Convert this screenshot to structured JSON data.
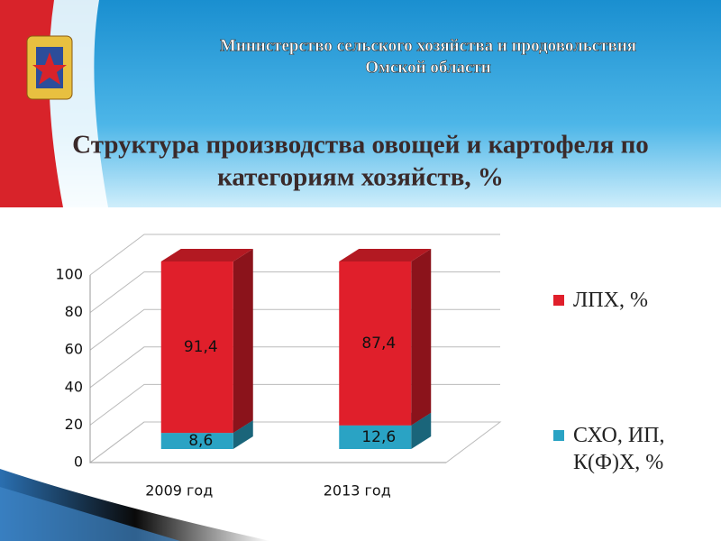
{
  "header": {
    "lines": [
      "Министерство сельского хозяйства и продовольствия",
      "Омской области"
    ]
  },
  "chart_data": {
    "type": "bar3d_stacked",
    "title_lines": [
      "Структура производства овощей и картофеля по",
      "категориям хозяйств, %"
    ],
    "categories": [
      "2009 год",
      "2013 год"
    ],
    "series": [
      {
        "name": "СХО, ИП, К(Ф)Х, %",
        "color": "#2aa3c4",
        "values": [
          8.6,
          12.6
        ],
        "value_labels": [
          "8,6",
          "12,6"
        ]
      },
      {
        "name": "ЛПХ, %",
        "color": "#e01f2b",
        "values": [
          91.4,
          87.4
        ],
        "value_labels": [
          "91,4",
          "87,4"
        ]
      }
    ],
    "ylim": [
      0,
      100
    ],
    "yticks": [
      0,
      20,
      40,
      60,
      80,
      100
    ],
    "grid": true,
    "legend": "right"
  }
}
